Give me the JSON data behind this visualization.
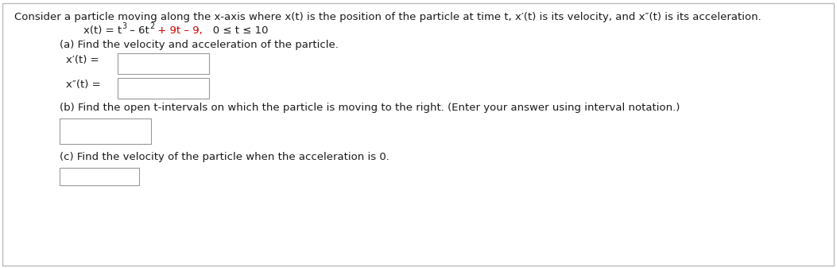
{
  "bg_color": "#ffffff",
  "border_color": "#bbbbbb",
  "text_color": "#1a1a1a",
  "red_color": "#cc0000",
  "header_text": "Consider a particle moving along the x-axis where x(t) is the position of the particle at time t, x′(t) is its velocity, and x″(t) is its acceleration.",
  "part_a_text": "(a) Find the velocity and acceleration of the particle.",
  "x_prime_label": "x′(t) =",
  "x_double_prime_label": "x″(t) =",
  "part_b_text": "(b) Find the open t-intervals on which the particle is moving to the right. (Enter your answer using interval notation.)",
  "part_c_text": "(c) Find the velocity of the particle when the acceleration is 0.",
  "font_size": 9.5,
  "box_edge_color": "#999999",
  "box_face_color": "#ffffff",
  "eq_seg1": "x(t) = t",
  "eq_sup1": "3",
  "eq_seg2": " – 6t",
  "eq_sup2": "2",
  "eq_seg3": " + 9t – 9,",
  "eq_seg4": "   0 ≤ t ≤ 10"
}
